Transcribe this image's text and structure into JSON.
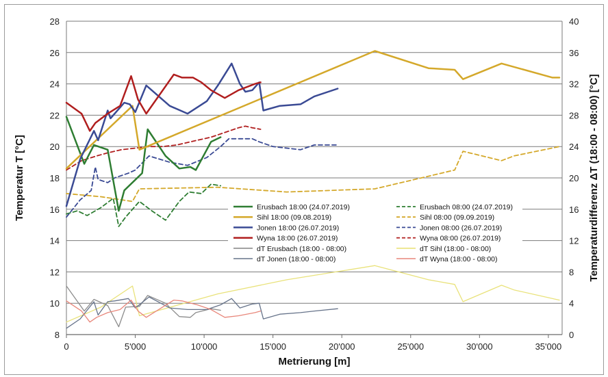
{
  "chart_data": {
    "type": "line",
    "xlabel": "Metrierung [m]",
    "ylabel_left": "Temperatur T [°C]",
    "ylabel_right": "Temperaturdifferenz ΔT (18:00 - 08:00) [°C]",
    "xlim": [
      0,
      36000
    ],
    "ylim_left": [
      8,
      28
    ],
    "ylim_right": [
      0,
      40
    ],
    "x_ticks": [
      0,
      5000,
      10000,
      15000,
      20000,
      25000,
      30000,
      35000
    ],
    "x_tick_labels": [
      "0",
      "5'000",
      "10'000",
      "15'000",
      "20'000",
      "25'000",
      "30'000",
      "35'000"
    ],
    "y_left_ticks": [
      8,
      10,
      12,
      14,
      16,
      18,
      20,
      22,
      24,
      26,
      28
    ],
    "y_right_ticks": [
      0,
      4,
      8,
      12,
      16,
      20,
      24,
      28,
      32,
      36,
      40
    ],
    "grid": true,
    "legend_position": "center-right",
    "series": [
      {
        "name": "Erusbach 18:00 (24.07.2019)",
        "axis": "left",
        "color": "#2e7d32",
        "dash": "solid",
        "width": 2.5,
        "x": [
          0,
          1300,
          2000,
          3000,
          3800,
          4200,
          5500,
          5900,
          7200,
          8200,
          9000,
          9400,
          10500,
          11200
        ],
        "y": [
          21.9,
          18.9,
          20.1,
          19.8,
          15.9,
          17.2,
          18.3,
          21.1,
          19.4,
          18.6,
          18.7,
          18.5,
          20.3,
          20.6
        ]
      },
      {
        "name": "Erusbach 08:00 (24.07.2019)",
        "axis": "left",
        "color": "#2e7d32",
        "dash": "dashed",
        "width": 1.8,
        "x": [
          0,
          800,
          1500,
          2500,
          3400,
          3800,
          4300,
          5300,
          6200,
          7200,
          8200,
          8900,
          9800,
          10500,
          11200
        ],
        "y": [
          15.7,
          15.9,
          15.6,
          16.1,
          16.7,
          14.9,
          15.5,
          16.5,
          15.9,
          15.3,
          16.5,
          17.1,
          17.0,
          17.6,
          17.5
        ]
      },
      {
        "name": "Sihl 18:00 (09.08.2019)",
        "axis": "left",
        "color": "#d4a82a",
        "dash": "solid",
        "width": 2.5,
        "x": [
          0,
          4800,
          5300,
          22400,
          26300,
          28200,
          28800,
          31600,
          35300,
          35800
        ],
        "y": [
          18.6,
          22.6,
          19.8,
          26.1,
          25.0,
          24.9,
          24.3,
          25.3,
          24.4,
          24.4
        ]
      },
      {
        "name": "Sihl 08:00 (09.09.2019)",
        "axis": "left",
        "color": "#d4a82a",
        "dash": "dashed",
        "width": 1.8,
        "x": [
          0,
          2500,
          4800,
          5300,
          11000,
          16000,
          22400,
          28200,
          28800,
          31600,
          32500,
          35800
        ],
        "y": [
          17.0,
          16.8,
          16.5,
          17.3,
          17.4,
          17.1,
          17.3,
          18.5,
          19.7,
          19.1,
          19.4,
          20.0
        ]
      },
      {
        "name": "Jonen 18:00 (26.07.2019)",
        "axis": "left",
        "color": "#3a4a94",
        "dash": "solid",
        "width": 2.5,
        "x": [
          0,
          1000,
          2000,
          2300,
          3000,
          3200,
          4200,
          4600,
          5000,
          5800,
          7500,
          8800,
          10200,
          11000,
          12000,
          12600,
          13000,
          13500,
          14000,
          14300,
          15500,
          17000,
          18000,
          19700
        ],
        "y": [
          16.2,
          19.2,
          21.0,
          20.4,
          22.3,
          21.8,
          22.8,
          22.7,
          22.2,
          23.9,
          22.6,
          22.1,
          22.9,
          23.9,
          25.3,
          24.0,
          23.5,
          23.6,
          24.1,
          22.3,
          22.6,
          22.7,
          23.2,
          23.7
        ]
      },
      {
        "name": "Jonen 08:00 (26.07.2019)",
        "axis": "left",
        "color": "#3a4a94",
        "dash": "dashed",
        "width": 1.8,
        "x": [
          0,
          1000,
          1800,
          2100,
          2300,
          3000,
          3500,
          4500,
          5000,
          6000,
          7500,
          8800,
          10200,
          11200,
          11800,
          12500,
          13500,
          14000,
          15000,
          17000,
          18000,
          19700
        ],
        "y": [
          15.5,
          16.6,
          17.2,
          18.7,
          17.9,
          17.7,
          18.0,
          18.3,
          18.5,
          19.4,
          19.0,
          18.8,
          19.3,
          20.0,
          20.5,
          20.5,
          20.5,
          20.3,
          20.0,
          19.8,
          20.1,
          20.1
        ]
      },
      {
        "name": "Wyna 18:00 (26.07.2019)",
        "axis": "left",
        "color": "#b01e1e",
        "dash": "solid",
        "width": 2.5,
        "x": [
          0,
          1100,
          1700,
          2100,
          3000,
          3900,
          4700,
          5200,
          5800,
          7800,
          8400,
          9200,
          9800,
          10500,
          11500,
          12500,
          13700,
          14100
        ],
        "y": [
          22.8,
          22.1,
          21.0,
          21.5,
          22.1,
          22.6,
          24.5,
          23.0,
          22.1,
          24.6,
          24.4,
          24.4,
          24.1,
          23.6,
          23.1,
          23.6,
          24.0,
          24.1
        ]
      },
      {
        "name": "Wyna 08:00 (26.07.2019)",
        "axis": "left",
        "color": "#b01e1e",
        "dash": "dashed",
        "width": 1.8,
        "x": [
          0,
          1100,
          2200,
          3000,
          4000,
          5000,
          6000,
          7000,
          8000,
          9500,
          10500,
          11500,
          12500,
          13000,
          13500,
          14100
        ],
        "y": [
          18.5,
          19.1,
          19.4,
          19.6,
          19.8,
          19.9,
          20.0,
          20.0,
          20.1,
          20.4,
          20.6,
          20.9,
          21.2,
          21.3,
          21.2,
          21.1
        ]
      },
      {
        "name": "dT Erusbach (18:00 - 08:00)",
        "axis": "right",
        "color": "#8c8c8c",
        "dash": "solid",
        "width": 1.3,
        "x": [
          0,
          1300,
          2000,
          3000,
          3800,
          4300,
          5300,
          5900,
          7200,
          8200,
          9000,
          9400,
          10500,
          11200
        ],
        "y": [
          6.2,
          3.0,
          4.5,
          3.7,
          1.0,
          3.5,
          3.6,
          5.0,
          4.0,
          2.3,
          2.2,
          2.8,
          3.3,
          3.1
        ]
      },
      {
        "name": "dT Sihl (18:00 - 08:00)",
        "axis": "right",
        "color": "#e9e27a",
        "dash": "solid",
        "width": 1.3,
        "x": [
          0,
          2500,
          4800,
          5300,
          11000,
          16000,
          22400,
          26300,
          28200,
          28800,
          31600,
          32500,
          35800
        ],
        "y": [
          1.6,
          3.5,
          6.2,
          2.4,
          5.2,
          7.0,
          8.8,
          7.0,
          6.4,
          4.2,
          6.3,
          5.7,
          4.4
        ]
      },
      {
        "name": "dT Jonen (18:00 - 08:00)",
        "axis": "right",
        "color": "#66738a",
        "dash": "solid",
        "width": 1.3,
        "x": [
          0,
          1000,
          2000,
          2300,
          3000,
          3500,
          4500,
          5000,
          6000,
          7500,
          8800,
          10200,
          11200,
          12000,
          12600,
          13500,
          14000,
          14300,
          15500,
          17000,
          18000,
          19700
        ],
        "y": [
          0.8,
          2.0,
          4.2,
          2.5,
          4.2,
          4.3,
          4.6,
          3.4,
          4.8,
          3.4,
          3.2,
          3.2,
          3.8,
          4.6,
          3.4,
          3.9,
          4.0,
          2.0,
          2.6,
          2.8,
          3.0,
          3.3
        ]
      },
      {
        "name": "dT Wyna (18:00 - 08:00)",
        "axis": "right",
        "color": "#e8867a",
        "dash": "solid",
        "width": 1.3,
        "x": [
          0,
          1100,
          1700,
          2200,
          3000,
          3900,
          4700,
          5200,
          5800,
          7800,
          8400,
          9500,
          10500,
          11500,
          12500,
          13700,
          14100
        ],
        "y": [
          4.3,
          3.0,
          1.6,
          2.2,
          2.8,
          3.2,
          4.4,
          3.0,
          2.2,
          4.4,
          4.3,
          3.8,
          3.2,
          2.2,
          2.4,
          2.8,
          3.0
        ]
      }
    ]
  }
}
